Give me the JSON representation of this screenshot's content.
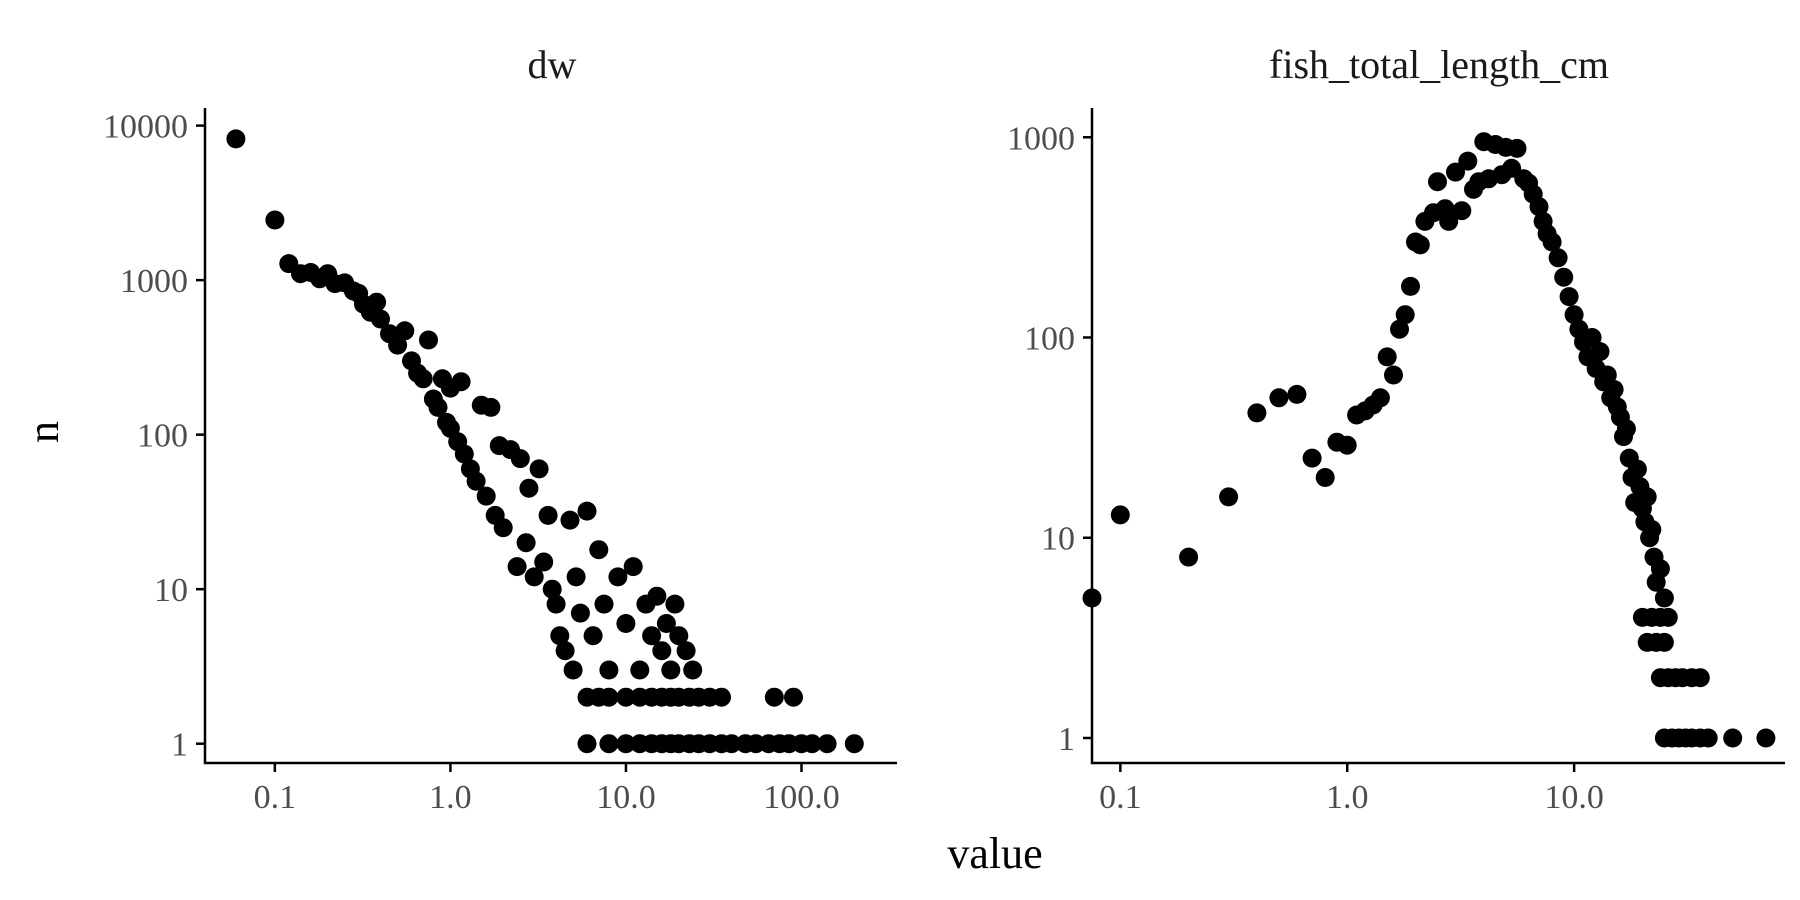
{
  "figure": {
    "xlabel": "value",
    "ylabel": "n",
    "colors": {
      "points": "#000000",
      "axis": "#000000",
      "tick_text": "#4d4d4d",
      "background": "#ffffff"
    }
  },
  "chart_data": [
    {
      "type": "scatter",
      "title": "dw",
      "xscale": "log10",
      "yscale": "log10",
      "xlim": [
        0.04,
        350
      ],
      "ylim": [
        0.75,
        13000
      ],
      "x_ticks": [
        0.1,
        1,
        10,
        100
      ],
      "x_tick_labels": [
        "0.1",
        "1.0",
        "10.0",
        "100.0"
      ],
      "y_ticks": [
        1,
        10,
        100,
        1000,
        10000
      ],
      "y_tick_labels": [
        "1",
        "10",
        "100",
        "1000",
        "10000"
      ],
      "grid": false,
      "points": [
        {
          "x": 0.06,
          "y": 8200
        },
        {
          "x": 0.1,
          "y": 2450
        },
        {
          "x": 0.12,
          "y": 1280
        },
        {
          "x": 0.14,
          "y": 1100
        },
        {
          "x": 0.16,
          "y": 1120
        },
        {
          "x": 0.18,
          "y": 1020
        },
        {
          "x": 0.2,
          "y": 1100
        },
        {
          "x": 0.22,
          "y": 950
        },
        {
          "x": 0.25,
          "y": 960
        },
        {
          "x": 0.28,
          "y": 850
        },
        {
          "x": 0.3,
          "y": 820
        },
        {
          "x": 0.32,
          "y": 700
        },
        {
          "x": 0.35,
          "y": 620
        },
        {
          "x": 0.38,
          "y": 720
        },
        {
          "x": 0.4,
          "y": 560
        },
        {
          "x": 0.45,
          "y": 450
        },
        {
          "x": 0.5,
          "y": 380
        },
        {
          "x": 0.55,
          "y": 470
        },
        {
          "x": 0.6,
          "y": 300
        },
        {
          "x": 0.65,
          "y": 250
        },
        {
          "x": 0.7,
          "y": 230
        },
        {
          "x": 0.75,
          "y": 410
        },
        {
          "x": 0.8,
          "y": 170
        },
        {
          "x": 0.85,
          "y": 150
        },
        {
          "x": 0.9,
          "y": 230
        },
        {
          "x": 0.95,
          "y": 120
        },
        {
          "x": 1.0,
          "y": 110
        },
        {
          "x": 1.0,
          "y": 200
        },
        {
          "x": 1.1,
          "y": 90
        },
        {
          "x": 1.15,
          "y": 220
        },
        {
          "x": 1.2,
          "y": 75
        },
        {
          "x": 1.3,
          "y": 60
        },
        {
          "x": 1.4,
          "y": 50
        },
        {
          "x": 1.5,
          "y": 155
        },
        {
          "x": 1.6,
          "y": 40
        },
        {
          "x": 1.7,
          "y": 150
        },
        {
          "x": 1.8,
          "y": 30
        },
        {
          "x": 1.9,
          "y": 85
        },
        {
          "x": 2.0,
          "y": 25
        },
        {
          "x": 2.2,
          "y": 80
        },
        {
          "x": 2.4,
          "y": 14
        },
        {
          "x": 2.5,
          "y": 70
        },
        {
          "x": 2.7,
          "y": 20
        },
        {
          "x": 2.8,
          "y": 45
        },
        {
          "x": 3.0,
          "y": 12
        },
        {
          "x": 3.2,
          "y": 60
        },
        {
          "x": 3.4,
          "y": 15
        },
        {
          "x": 3.6,
          "y": 30
        },
        {
          "x": 3.8,
          "y": 10
        },
        {
          "x": 4.0,
          "y": 8
        },
        {
          "x": 4.2,
          "y": 5
        },
        {
          "x": 4.5,
          "y": 4
        },
        {
          "x": 4.8,
          "y": 28
        },
        {
          "x": 5.0,
          "y": 3
        },
        {
          "x": 5.2,
          "y": 12
        },
        {
          "x": 5.5,
          "y": 7
        },
        {
          "x": 6.0,
          "y": 32
        },
        {
          "x": 6.5,
          "y": 5
        },
        {
          "x": 7.0,
          "y": 18
        },
        {
          "x": 7.5,
          "y": 8
        },
        {
          "x": 8.0,
          "y": 3
        },
        {
          "x": 9.0,
          "y": 12
        },
        {
          "x": 10.0,
          "y": 6
        },
        {
          "x": 11.0,
          "y": 14
        },
        {
          "x": 12.0,
          "y": 3
        },
        {
          "x": 13.0,
          "y": 8
        },
        {
          "x": 14.0,
          "y": 5
        },
        {
          "x": 15.0,
          "y": 9
        },
        {
          "x": 16.0,
          "y": 4
        },
        {
          "x": 17.0,
          "y": 6
        },
        {
          "x": 18.0,
          "y": 3
        },
        {
          "x": 19.0,
          "y": 8
        },
        {
          "x": 20.0,
          "y": 5
        },
        {
          "x": 22.0,
          "y": 4
        },
        {
          "x": 24.0,
          "y": 3
        },
        {
          "x": 6.0,
          "y": 2
        },
        {
          "x": 7.0,
          "y": 2
        },
        {
          "x": 8.0,
          "y": 2
        },
        {
          "x": 10.0,
          "y": 2
        },
        {
          "x": 12.0,
          "y": 2
        },
        {
          "x": 14.0,
          "y": 2
        },
        {
          "x": 16.0,
          "y": 2
        },
        {
          "x": 18.0,
          "y": 2
        },
        {
          "x": 20.0,
          "y": 2
        },
        {
          "x": 23.0,
          "y": 2
        },
        {
          "x": 26.0,
          "y": 2
        },
        {
          "x": 30.0,
          "y": 2
        },
        {
          "x": 35.0,
          "y": 2
        },
        {
          "x": 70.0,
          "y": 2
        },
        {
          "x": 90.0,
          "y": 2
        },
        {
          "x": 6.0,
          "y": 1
        },
        {
          "x": 8.0,
          "y": 1
        },
        {
          "x": 10.0,
          "y": 1
        },
        {
          "x": 12.0,
          "y": 1
        },
        {
          "x": 14.0,
          "y": 1
        },
        {
          "x": 16.0,
          "y": 1
        },
        {
          "x": 18.0,
          "y": 1
        },
        {
          "x": 20.0,
          "y": 1
        },
        {
          "x": 23.0,
          "y": 1
        },
        {
          "x": 26.0,
          "y": 1
        },
        {
          "x": 30.0,
          "y": 1
        },
        {
          "x": 35.0,
          "y": 1
        },
        {
          "x": 40.0,
          "y": 1
        },
        {
          "x": 48.0,
          "y": 1
        },
        {
          "x": 55.0,
          "y": 1
        },
        {
          "x": 65.0,
          "y": 1
        },
        {
          "x": 75.0,
          "y": 1
        },
        {
          "x": 85.0,
          "y": 1
        },
        {
          "x": 100.0,
          "y": 1
        },
        {
          "x": 115.0,
          "y": 1
        },
        {
          "x": 140.0,
          "y": 1
        },
        {
          "x": 200.0,
          "y": 1
        }
      ]
    },
    {
      "type": "scatter",
      "title": "fish_total_length_cm",
      "xscale": "log10",
      "yscale": "log10",
      "xlim": [
        0.075,
        85
      ],
      "ylim": [
        0.75,
        1400
      ],
      "x_ticks": [
        0.1,
        1,
        10
      ],
      "x_tick_labels": [
        "0.1",
        "1.0",
        "10.0"
      ],
      "y_ticks": [
        1,
        10,
        100,
        1000
      ],
      "y_tick_labels": [
        "1",
        "10",
        "100",
        "1000"
      ],
      "grid": false,
      "points": [
        {
          "x": 0.075,
          "y": 5
        },
        {
          "x": 0.1,
          "y": 13
        },
        {
          "x": 0.2,
          "y": 8
        },
        {
          "x": 0.3,
          "y": 16
        },
        {
          "x": 0.4,
          "y": 42
        },
        {
          "x": 0.5,
          "y": 50
        },
        {
          "x": 0.6,
          "y": 52
        },
        {
          "x": 0.7,
          "y": 25
        },
        {
          "x": 0.8,
          "y": 20
        },
        {
          "x": 0.9,
          "y": 30
        },
        {
          "x": 1.0,
          "y": 29
        },
        {
          "x": 1.1,
          "y": 41
        },
        {
          "x": 1.2,
          "y": 43
        },
        {
          "x": 1.3,
          "y": 46
        },
        {
          "x": 1.4,
          "y": 50
        },
        {
          "x": 1.5,
          "y": 80
        },
        {
          "x": 1.6,
          "y": 65
        },
        {
          "x": 1.7,
          "y": 110
        },
        {
          "x": 1.8,
          "y": 130
        },
        {
          "x": 1.9,
          "y": 180
        },
        {
          "x": 2.0,
          "y": 300
        },
        {
          "x": 2.1,
          "y": 290
        },
        {
          "x": 2.2,
          "y": 380
        },
        {
          "x": 2.4,
          "y": 420
        },
        {
          "x": 2.5,
          "y": 600
        },
        {
          "x": 2.7,
          "y": 440
        },
        {
          "x": 2.8,
          "y": 380
        },
        {
          "x": 3.0,
          "y": 670
        },
        {
          "x": 3.2,
          "y": 430
        },
        {
          "x": 3.4,
          "y": 760
        },
        {
          "x": 3.6,
          "y": 550
        },
        {
          "x": 3.8,
          "y": 600
        },
        {
          "x": 4.0,
          "y": 950
        },
        {
          "x": 4.2,
          "y": 620
        },
        {
          "x": 4.5,
          "y": 920
        },
        {
          "x": 4.8,
          "y": 650
        },
        {
          "x": 5.0,
          "y": 890
        },
        {
          "x": 5.3,
          "y": 700
        },
        {
          "x": 5.6,
          "y": 880
        },
        {
          "x": 6.0,
          "y": 620
        },
        {
          "x": 6.3,
          "y": 590
        },
        {
          "x": 6.6,
          "y": 520
        },
        {
          "x": 7.0,
          "y": 450
        },
        {
          "x": 7.3,
          "y": 380
        },
        {
          "x": 7.6,
          "y": 330
        },
        {
          "x": 8.0,
          "y": 300
        },
        {
          "x": 8.5,
          "y": 250
        },
        {
          "x": 9.0,
          "y": 200
        },
        {
          "x": 9.5,
          "y": 160
        },
        {
          "x": 10.0,
          "y": 130
        },
        {
          "x": 10.5,
          "y": 110
        },
        {
          "x": 11.0,
          "y": 95
        },
        {
          "x": 11.5,
          "y": 80
        },
        {
          "x": 12.0,
          "y": 100
        },
        {
          "x": 12.5,
          "y": 70
        },
        {
          "x": 13.0,
          "y": 85
        },
        {
          "x": 13.5,
          "y": 60
        },
        {
          "x": 14.0,
          "y": 65
        },
        {
          "x": 14.5,
          "y": 50
        },
        {
          "x": 15.0,
          "y": 55
        },
        {
          "x": 15.5,
          "y": 45
        },
        {
          "x": 16.0,
          "y": 40
        },
        {
          "x": 16.5,
          "y": 32
        },
        {
          "x": 17.0,
          "y": 35
        },
        {
          "x": 17.5,
          "y": 25
        },
        {
          "x": 18.0,
          "y": 20
        },
        {
          "x": 18.5,
          "y": 15
        },
        {
          "x": 19.0,
          "y": 22
        },
        {
          "x": 19.5,
          "y": 18
        },
        {
          "x": 20.0,
          "y": 14
        },
        {
          "x": 20.5,
          "y": 12
        },
        {
          "x": 21.0,
          "y": 16
        },
        {
          "x": 21.5,
          "y": 10
        },
        {
          "x": 22.0,
          "y": 11
        },
        {
          "x": 22.5,
          "y": 8
        },
        {
          "x": 23.0,
          "y": 6
        },
        {
          "x": 24.0,
          "y": 7
        },
        {
          "x": 25.0,
          "y": 5
        },
        {
          "x": 20.0,
          "y": 4
        },
        {
          "x": 22.0,
          "y": 4
        },
        {
          "x": 24.0,
          "y": 4
        },
        {
          "x": 26.0,
          "y": 4
        },
        {
          "x": 21.0,
          "y": 3
        },
        {
          "x": 23.0,
          "y": 3
        },
        {
          "x": 25.0,
          "y": 3
        },
        {
          "x": 24.0,
          "y": 2
        },
        {
          "x": 26.0,
          "y": 2
        },
        {
          "x": 28.0,
          "y": 2
        },
        {
          "x": 30.0,
          "y": 2
        },
        {
          "x": 33.0,
          "y": 2
        },
        {
          "x": 36.0,
          "y": 2
        },
        {
          "x": 25.0,
          "y": 1
        },
        {
          "x": 27.0,
          "y": 1
        },
        {
          "x": 29.0,
          "y": 1
        },
        {
          "x": 31.0,
          "y": 1
        },
        {
          "x": 33.0,
          "y": 1
        },
        {
          "x": 36.0,
          "y": 1
        },
        {
          "x": 39.0,
          "y": 1
        },
        {
          "x": 50.0,
          "y": 1
        },
        {
          "x": 70.0,
          "y": 1
        }
      ]
    }
  ]
}
